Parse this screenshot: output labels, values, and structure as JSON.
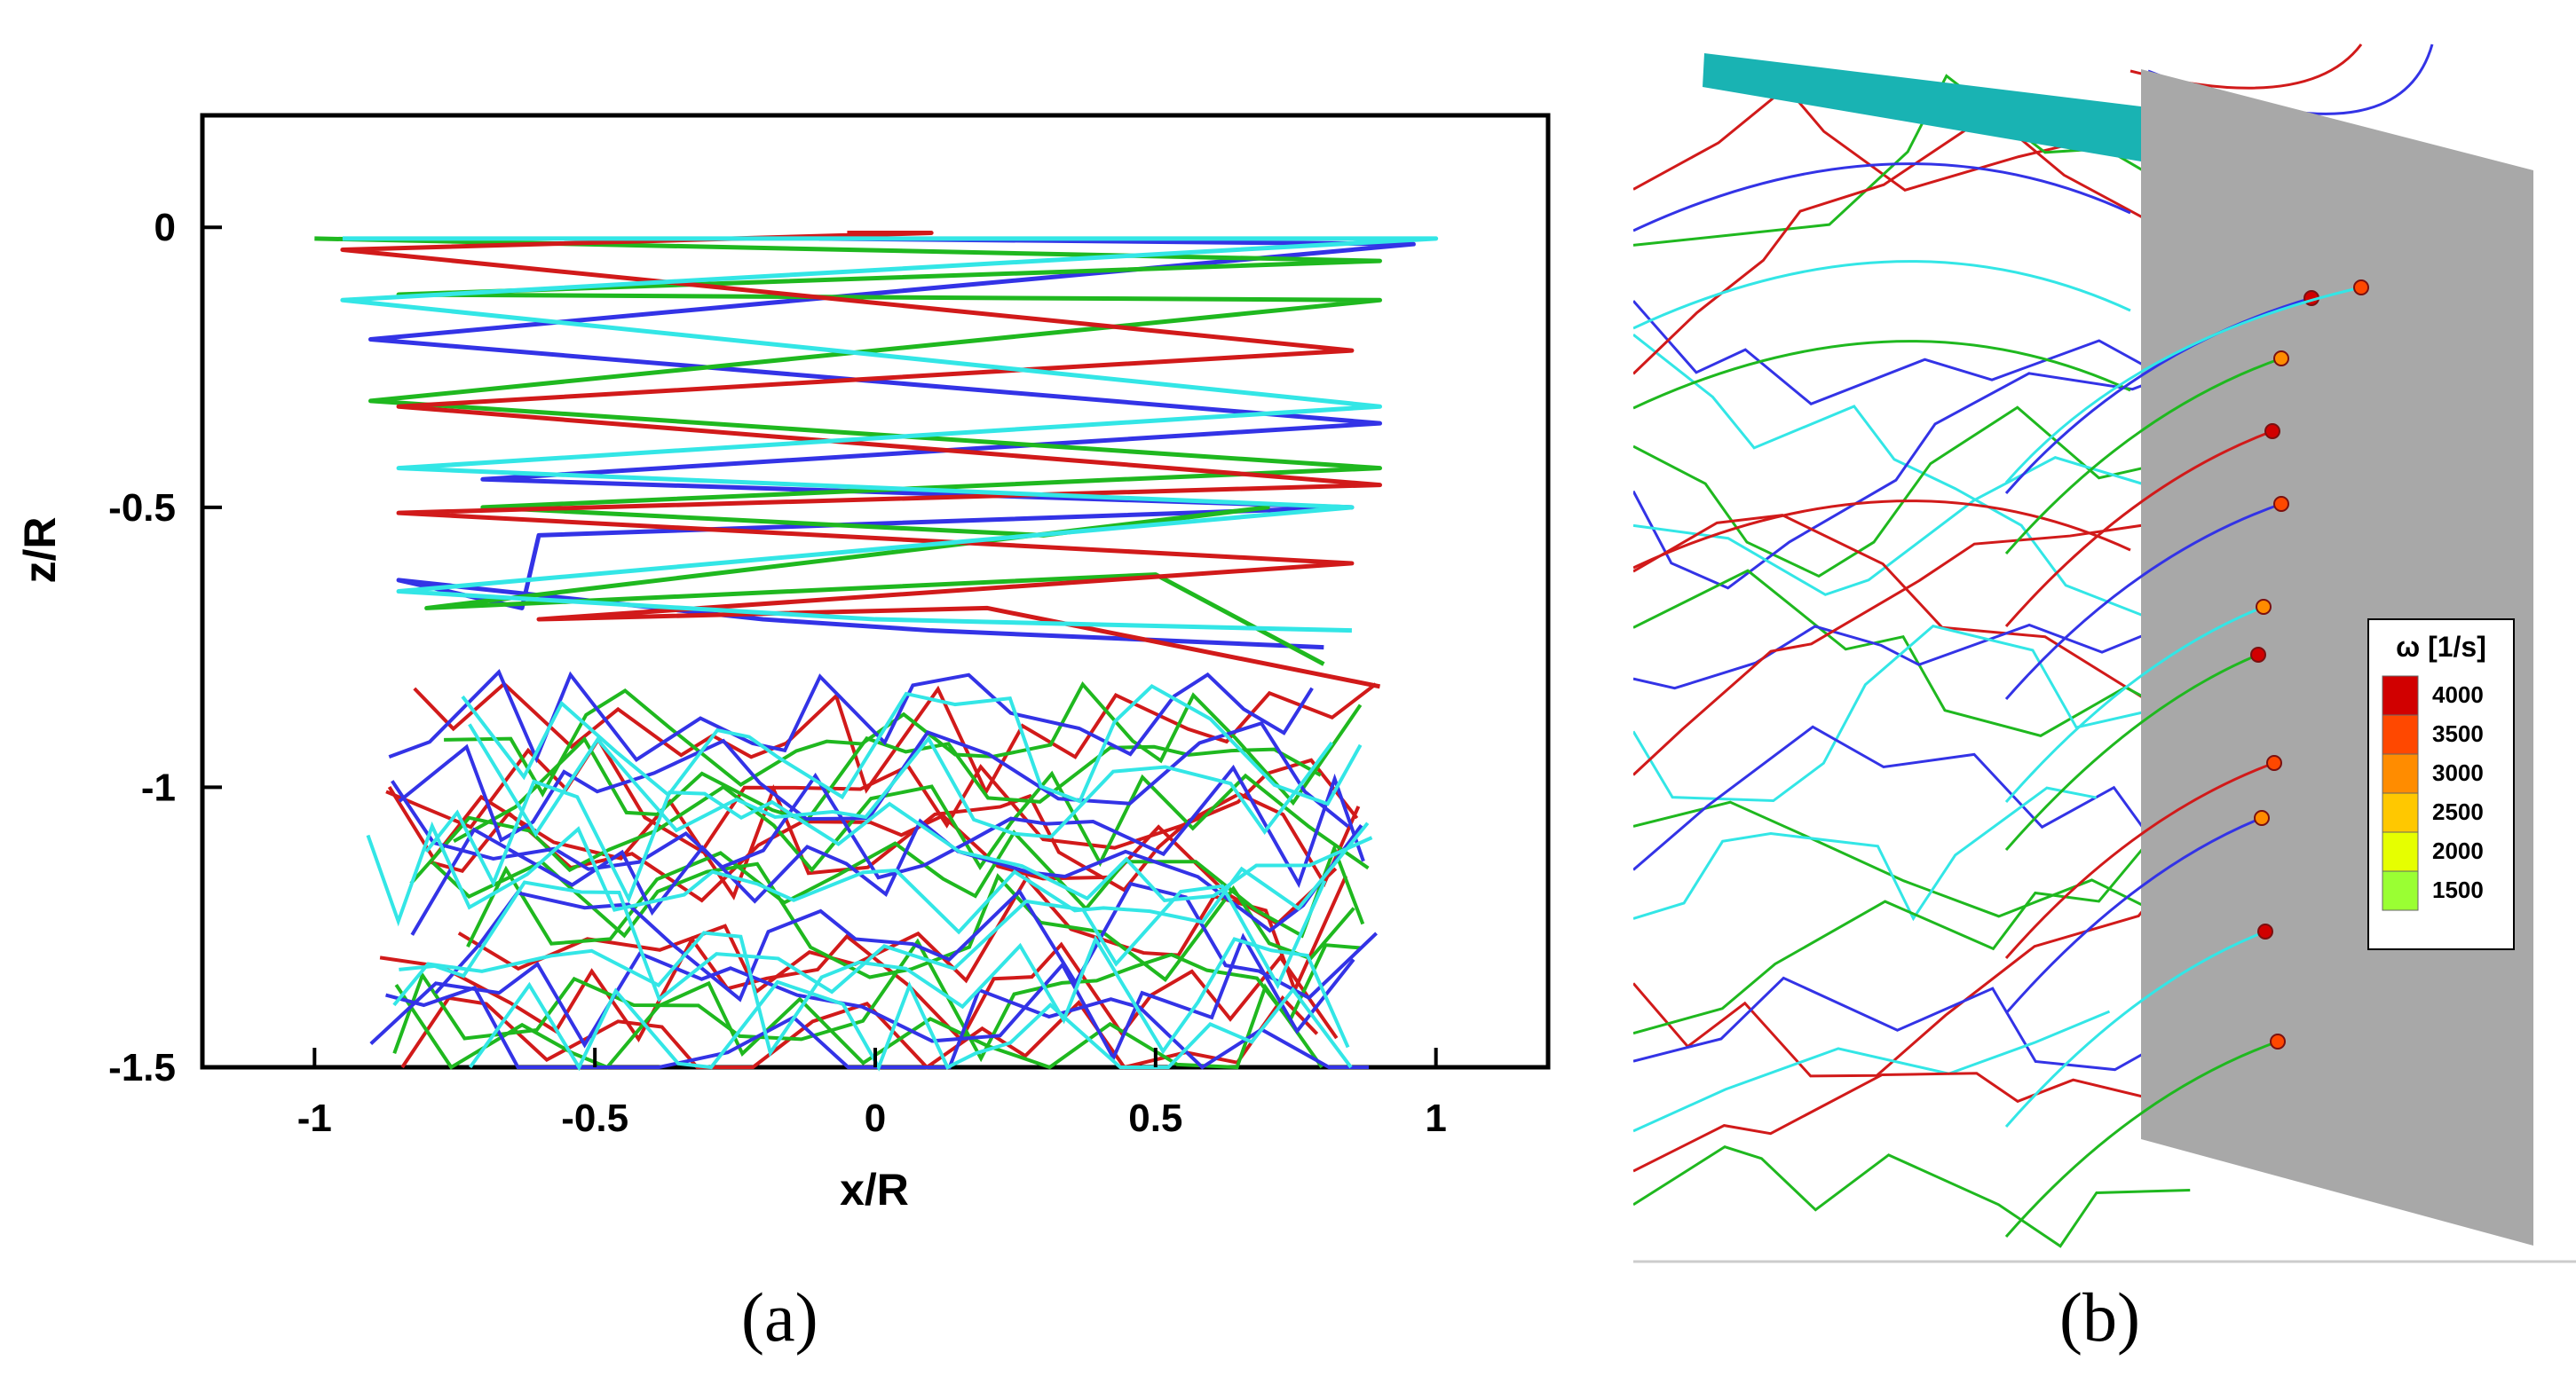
{
  "chart_data": [
    {
      "panel": "a",
      "type": "line",
      "xlabel": "x/R",
      "ylabel": "z/R",
      "xlim": [
        -1.2,
        1.2
      ],
      "ylim": [
        -1.5,
        0.2
      ],
      "xticks": [
        -1,
        -0.5,
        0,
        0.5,
        1
      ],
      "xtick_labels": [
        "-1",
        "-0.5",
        "0",
        "0.5",
        "1"
      ],
      "yticks": [
        0,
        -0.5,
        -1,
        -1.5
      ],
      "ytick_labels": [
        "0",
        "-0.5",
        "-1",
        "-1.5"
      ],
      "grid": false,
      "colors": [
        "#d11a1a",
        "#1fb81f",
        "#3333e6",
        "#33e6e6"
      ],
      "series": [
        {
          "color": "#3333e6",
          "points": [
            [
              -0.1,
              -0.02
            ],
            [
              0.96,
              -0.03
            ],
            [
              -0.9,
              -0.2
            ],
            [
              0.9,
              -0.35
            ],
            [
              -0.7,
              -0.45
            ],
            [
              0.85,
              -0.5
            ],
            [
              -0.6,
              -0.55
            ],
            [
              -0.63,
              -0.68
            ],
            [
              -0.85,
              -0.63
            ],
            [
              -0.2,
              -0.7
            ],
            [
              0.1,
              -0.72
            ],
            [
              0.8,
              -0.75
            ]
          ]
        },
        {
          "color": "#1fb81f",
          "points": [
            [
              -1.0,
              -0.02
            ],
            [
              0.9,
              -0.06
            ],
            [
              -0.85,
              -0.12
            ],
            [
              0.9,
              -0.13
            ],
            [
              -0.9,
              -0.31
            ],
            [
              0.9,
              -0.43
            ],
            [
              -0.7,
              -0.5
            ],
            [
              0.3,
              -0.55
            ],
            [
              0.7,
              -0.5
            ],
            [
              -0.8,
              -0.68
            ],
            [
              0.5,
              -0.62
            ],
            [
              0.8,
              -0.78
            ]
          ]
        },
        {
          "color": "#d11a1a",
          "points": [
            [
              -0.05,
              -0.01
            ],
            [
              0.1,
              -0.01
            ],
            [
              -0.95,
              -0.04
            ],
            [
              0.85,
              -0.22
            ],
            [
              -0.85,
              -0.32
            ],
            [
              0.9,
              -0.46
            ],
            [
              -0.85,
              -0.51
            ],
            [
              0.85,
              -0.6
            ],
            [
              -0.6,
              -0.7
            ],
            [
              0.2,
              -0.68
            ],
            [
              0.9,
              -0.82
            ]
          ]
        },
        {
          "color": "#33e6e6",
          "points": [
            [
              -0.95,
              -0.02
            ],
            [
              1.0,
              -0.02
            ],
            [
              -0.95,
              -0.13
            ],
            [
              0.9,
              -0.32
            ],
            [
              -0.85,
              -0.43
            ],
            [
              0.85,
              -0.5
            ],
            [
              -0.85,
              -0.65
            ],
            [
              0.0,
              -0.7
            ],
            [
              0.85,
              -0.72
            ]
          ]
        }
      ]
    },
    {
      "panel": "b",
      "type": "heatmap",
      "legend_title": "ω [1/s]",
      "legend_values": [
        4000,
        3500,
        3000,
        2500,
        2000,
        1500
      ],
      "legend_colors": [
        "#d10000",
        "#ff4800",
        "#ff8c00",
        "#ffc800",
        "#e6ff00",
        "#9aff33"
      ]
    }
  ],
  "captions": {
    "a": "(a)",
    "b": "(b)"
  }
}
